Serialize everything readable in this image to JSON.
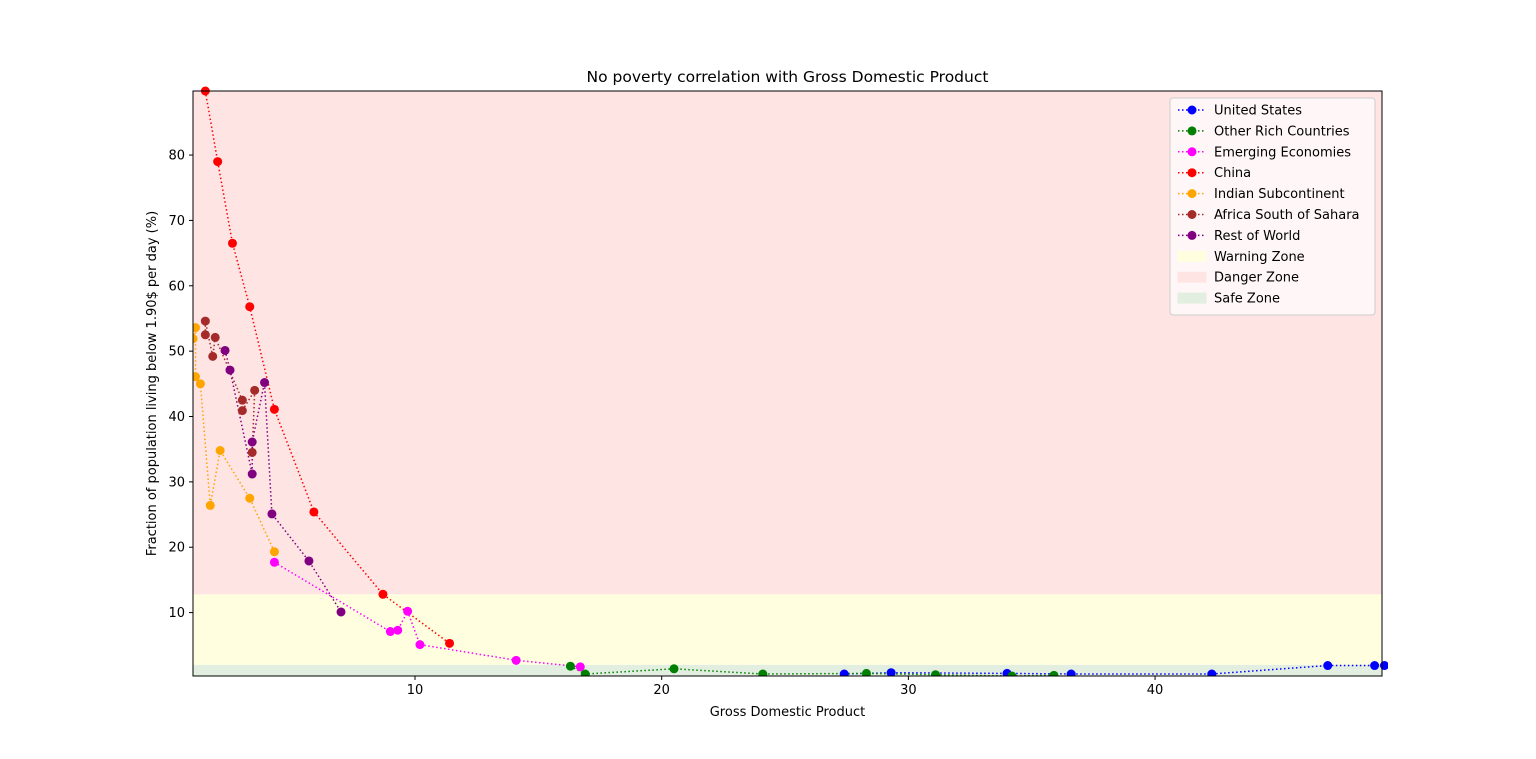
{
  "chart_data": {
    "type": "line",
    "title": "No poverty correlation with Gross Domestic Product",
    "xlabel": "Gross Domestic Product",
    "ylabel": "Fraction of population living below 1.90$ per day (%)",
    "xlim": [
      1.0,
      49.2
    ],
    "ylim": [
      0.3,
      89.8
    ],
    "xticks": [
      10,
      20,
      30,
      40
    ],
    "yticks": [
      10,
      20,
      30,
      40,
      50,
      60,
      70,
      80
    ],
    "line_style": "dotted",
    "legend_position": "top-right",
    "zones": [
      {
        "name": "Warning Zone",
        "y_range": [
          2,
          12.8
        ],
        "color": "#ffffe0"
      },
      {
        "name": "Danger Zone",
        "y_range": [
          12.8,
          89.8
        ],
        "color": "#ffe4e4"
      },
      {
        "name": "Safe Zone",
        "y_range": [
          0.3,
          2
        ],
        "color": "#e2eee0"
      }
    ],
    "series": [
      {
        "name": "United States",
        "color": "#0000ff",
        "points": [
          [
            27.4,
            0.6
          ],
          [
            29.3,
            0.8
          ],
          [
            34.0,
            0.7
          ],
          [
            36.6,
            0.6
          ],
          [
            42.3,
            0.6
          ],
          [
            47.0,
            1.9
          ],
          [
            48.9,
            1.9
          ],
          [
            49.3,
            1.9
          ]
        ]
      },
      {
        "name": "Other Rich Countries",
        "color": "#008000",
        "points": [
          [
            16.3,
            1.8
          ],
          [
            16.9,
            0.6
          ],
          [
            20.5,
            1.4
          ],
          [
            24.1,
            0.6
          ],
          [
            28.3,
            0.7
          ],
          [
            31.1,
            0.5
          ],
          [
            34.2,
            0.3
          ],
          [
            35.9,
            0.4
          ]
        ]
      },
      {
        "name": "Emerging Economies",
        "color": "#ff00ff",
        "points": [
          [
            16.7,
            1.7
          ],
          [
            14.1,
            2.7
          ],
          [
            10.2,
            5.1
          ],
          [
            9.7,
            10.2
          ],
          [
            9.3,
            7.3
          ],
          [
            9.0,
            7.1
          ],
          [
            4.3,
            17.7
          ]
        ]
      },
      {
        "name": "China",
        "color": "#ff0000",
        "points": [
          [
            1.5,
            89.8
          ],
          [
            2.0,
            79.0
          ],
          [
            2.6,
            66.5
          ],
          [
            3.3,
            56.8
          ],
          [
            4.3,
            41.1
          ],
          [
            5.9,
            25.4
          ],
          [
            8.7,
            12.8
          ],
          [
            11.4,
            5.3
          ]
        ]
      },
      {
        "name": "Indian Subcontinent",
        "color": "#ffa500",
        "points": [
          [
            1.0,
            51.9
          ],
          [
            1.1,
            53.6
          ],
          [
            1.1,
            46.1
          ],
          [
            1.3,
            45.0
          ],
          [
            1.7,
            26.4
          ],
          [
            2.1,
            34.8
          ],
          [
            3.3,
            27.5
          ],
          [
            4.3,
            19.3
          ]
        ]
      },
      {
        "name": "Africa South of Sahara",
        "color": "#a52a2a",
        "points": [
          [
            1.5,
            52.5
          ],
          [
            1.5,
            54.6
          ],
          [
            1.8,
            49.2
          ],
          [
            1.9,
            52.1
          ],
          [
            3.0,
            42.5
          ],
          [
            3.0,
            40.9
          ],
          [
            3.5,
            44.0
          ],
          [
            3.4,
            34.5
          ]
        ]
      },
      {
        "name": "Rest of World",
        "color": "#800080",
        "points": [
          [
            2.3,
            50.1
          ],
          [
            2.5,
            47.1
          ],
          [
            3.4,
            31.2
          ],
          [
            3.4,
            36.1
          ],
          [
            3.9,
            45.2
          ],
          [
            4.2,
            25.1
          ],
          [
            5.7,
            17.9
          ],
          [
            7.0,
            10.1
          ]
        ]
      }
    ]
  }
}
